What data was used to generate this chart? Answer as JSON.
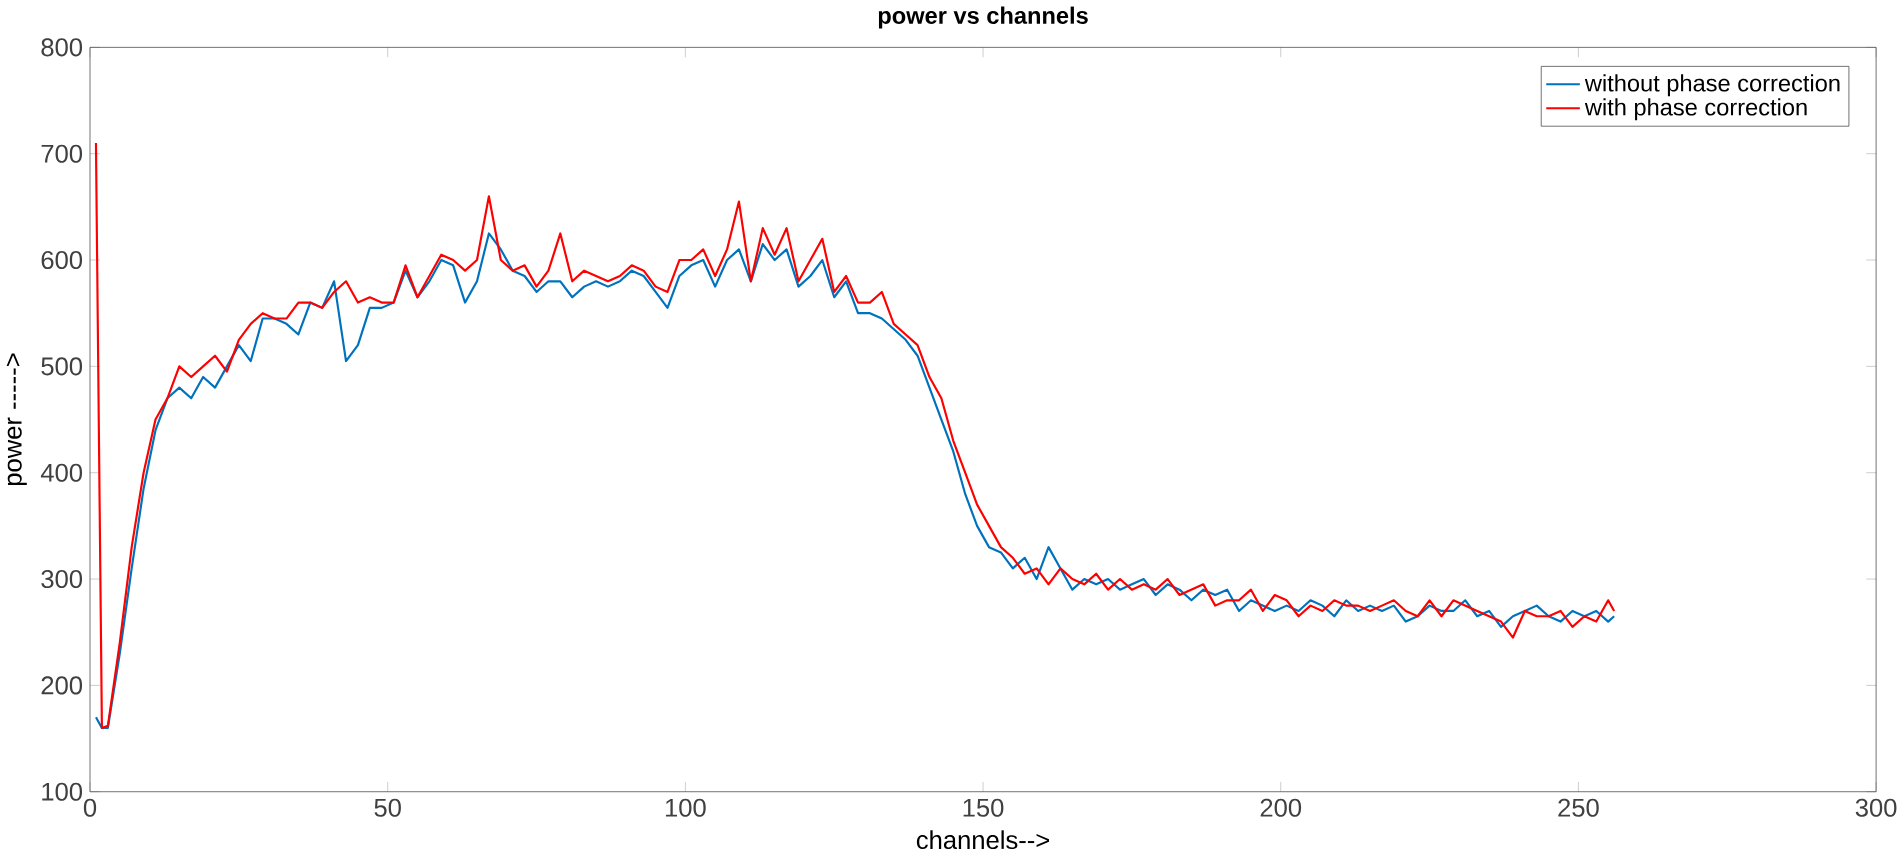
{
  "chart_data": {
    "type": "line",
    "title": "power vs channels",
    "xlabel": "channels-->",
    "ylabel": "power ----->",
    "x": [
      1,
      2,
      3,
      5,
      7,
      9,
      11,
      13,
      15,
      17,
      19,
      21,
      23,
      25,
      27,
      29,
      31,
      33,
      35,
      37,
      39,
      41,
      43,
      45,
      47,
      49,
      51,
      53,
      55,
      57,
      59,
      61,
      63,
      65,
      67,
      69,
      71,
      73,
      75,
      77,
      79,
      81,
      83,
      85,
      87,
      89,
      91,
      93,
      95,
      97,
      99,
      101,
      103,
      105,
      107,
      109,
      111,
      113,
      115,
      117,
      119,
      121,
      123,
      125,
      127,
      129,
      131,
      133,
      135,
      137,
      139,
      141,
      143,
      145,
      147,
      149,
      151,
      153,
      155,
      157,
      159,
      161,
      163,
      165,
      167,
      169,
      171,
      173,
      175,
      177,
      179,
      181,
      183,
      185,
      187,
      189,
      191,
      193,
      195,
      197,
      199,
      201,
      203,
      205,
      207,
      209,
      211,
      213,
      215,
      217,
      219,
      221,
      223,
      225,
      227,
      229,
      231,
      233,
      235,
      237,
      239,
      241,
      243,
      245,
      247,
      249,
      251,
      253,
      255,
      256
    ],
    "series": [
      {
        "name": "without phase correction",
        "color": "#0072bd",
        "values": [
          170,
          160,
          160,
          230,
          310,
          385,
          440,
          470,
          480,
          470,
          490,
          480,
          500,
          520,
          505,
          545,
          545,
          540,
          530,
          560,
          555,
          580,
          505,
          520,
          555,
          555,
          560,
          590,
          565,
          580,
          600,
          595,
          560,
          580,
          625,
          610,
          590,
          585,
          570,
          580,
          580,
          565,
          575,
          580,
          575,
          580,
          590,
          585,
          570,
          555,
          585,
          595,
          600,
          575,
          600,
          610,
          580,
          615,
          600,
          610,
          575,
          585,
          600,
          565,
          580,
          550,
          550,
          545,
          535,
          525,
          510,
          480,
          450,
          420,
          380,
          350,
          330,
          325,
          310,
          320,
          300,
          330,
          310,
          290,
          300,
          295,
          300,
          290,
          295,
          300,
          285,
          295,
          290,
          280,
          290,
          285,
          290,
          270,
          280,
          275,
          270,
          275,
          270,
          280,
          275,
          265,
          280,
          270,
          275,
          270,
          275,
          260,
          265,
          275,
          270,
          270,
          280,
          265,
          270,
          255,
          265,
          270,
          275,
          265,
          260,
          270,
          265,
          270,
          260,
          265
        ]
      },
      {
        "name": "with phase correction",
        "color": "#ff0000",
        "values": [
          710,
          160,
          162,
          240,
          330,
          400,
          450,
          470,
          500,
          490,
          500,
          510,
          495,
          525,
          540,
          550,
          545,
          545,
          560,
          560,
          555,
          570,
          580,
          560,
          565,
          560,
          560,
          595,
          565,
          585,
          605,
          600,
          590,
          600,
          660,
          600,
          590,
          595,
          575,
          590,
          625,
          580,
          590,
          585,
          580,
          585,
          595,
          590,
          575,
          570,
          600,
          600,
          610,
          585,
          610,
          655,
          580,
          630,
          605,
          630,
          580,
          600,
          620,
          570,
          585,
          560,
          560,
          570,
          540,
          530,
          520,
          490,
          470,
          430,
          400,
          370,
          350,
          330,
          320,
          305,
          310,
          295,
          310,
          300,
          295,
          305,
          290,
          300,
          290,
          295,
          290,
          300,
          285,
          290,
          295,
          275,
          280,
          280,
          290,
          270,
          285,
          280,
          265,
          275,
          270,
          280,
          275,
          275,
          270,
          275,
          280,
          270,
          265,
          280,
          265,
          280,
          275,
          270,
          265,
          260,
          245,
          270,
          265,
          265,
          270,
          255,
          265,
          260,
          280,
          270
        ]
      }
    ],
    "xlim": [
      0,
      300
    ],
    "xticks": [
      0,
      50,
      100,
      150,
      200,
      250,
      300
    ],
    "ylim": [
      100,
      800
    ],
    "yticks": [
      100,
      200,
      300,
      400,
      500,
      600,
      700,
      800
    ],
    "grid": false,
    "legend": "top right",
    "marker": "none",
    "line_style": "solid"
  }
}
